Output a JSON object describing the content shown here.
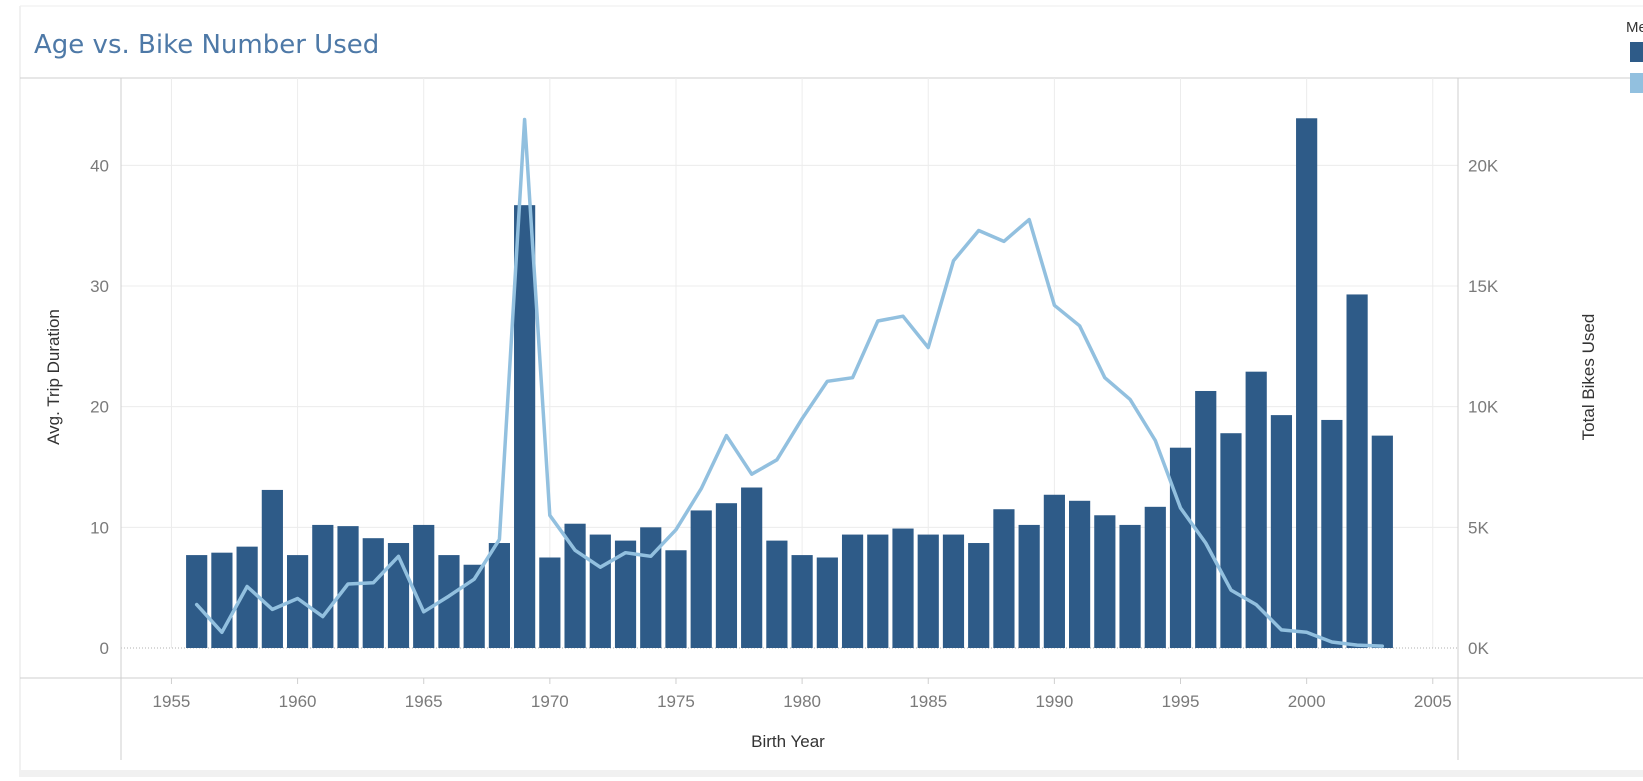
{
  "chart_data": {
    "type": "bar",
    "title": "Age vs. Bike Number Used",
    "xlabel": "Birth Year",
    "ylabel": "Avg. Trip Duration",
    "y2label": "Total Bikes Used",
    "xlim": [
      1953,
      2006
    ],
    "ylim": [
      0,
      45
    ],
    "y2lim": [
      0,
      22500
    ],
    "x_ticks": [
      "1955",
      "1960",
      "1965",
      "1970",
      "1975",
      "1980",
      "1985",
      "1990",
      "1995",
      "2000",
      "2005"
    ],
    "y_ticks": [
      "0",
      "10",
      "20",
      "30",
      "40"
    ],
    "y2_ticks": [
      "0K",
      "5K",
      "10K",
      "15K",
      "20K"
    ],
    "x": [
      1956,
      1957,
      1958,
      1959,
      1960,
      1961,
      1962,
      1963,
      1964,
      1965,
      1966,
      1967,
      1968,
      1969,
      1970,
      1971,
      1972,
      1973,
      1974,
      1975,
      1976,
      1977,
      1978,
      1979,
      1980,
      1981,
      1982,
      1983,
      1984,
      1985,
      1986,
      1987,
      1988,
      1989,
      1990,
      1991,
      1992,
      1993,
      1994,
      1995,
      1996,
      1997,
      1998,
      1999,
      2000,
      2001,
      2002,
      2003
    ],
    "series": [
      {
        "name": "Avg. Trip Duration",
        "axis": "left",
        "mark": "bar",
        "color": "#2e5b88",
        "values": [
          7.7,
          7.9,
          8.4,
          13.1,
          7.7,
          10.2,
          10.1,
          9.1,
          8.7,
          10.2,
          7.7,
          6.9,
          8.7,
          36.7,
          7.5,
          10.3,
          9.4,
          8.9,
          10.0,
          8.1,
          11.4,
          12.0,
          13.3,
          8.9,
          7.7,
          7.5,
          9.4,
          9.4,
          9.9,
          9.4,
          9.4,
          8.7,
          11.5,
          10.2,
          12.7,
          12.2,
          11.0,
          10.2,
          11.7,
          16.6,
          21.3,
          17.8,
          22.9,
          19.3,
          43.9,
          18.9,
          29.3,
          17.6
        ]
      },
      {
        "name": "Total Bikes Used",
        "axis": "right",
        "mark": "line",
        "color": "#92c0df",
        "values": [
          1800,
          650,
          2550,
          1600,
          2050,
          1300,
          2650,
          2700,
          3800,
          1500,
          2150,
          2850,
          4500,
          21900,
          5500,
          4050,
          3350,
          3950,
          3800,
          4900,
          6600,
          8800,
          7200,
          7800,
          9500,
          11050,
          11200,
          13550,
          13750,
          12450,
          16050,
          17300,
          16850,
          17750,
          14200,
          13350,
          11200,
          10300,
          8600,
          5800,
          4350,
          2400,
          1800,
          750,
          650,
          250,
          120,
          80
        ]
      }
    ],
    "legend": {
      "position": "top-right",
      "title_fragment": "Me",
      "colors": [
        "#2e5b88",
        "#92c0df"
      ]
    },
    "grid": true
  }
}
